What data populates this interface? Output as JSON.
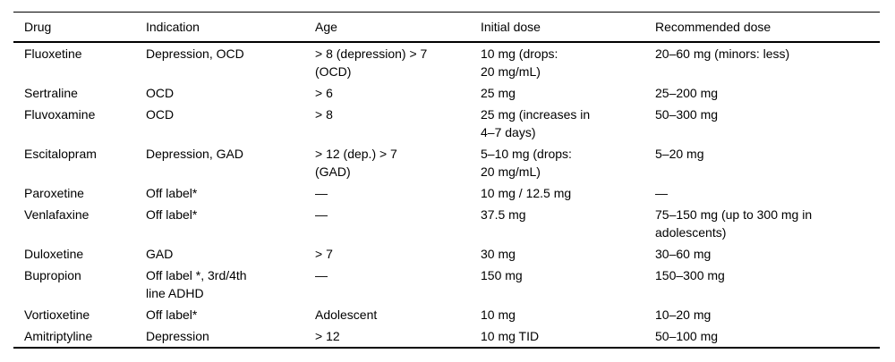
{
  "style": {
    "text_color": "#000000",
    "background_color": "#ffffff",
    "rule_color": "#000000"
  },
  "table": {
    "columns": [
      "Drug",
      "Indication",
      "Age",
      "Initial dose",
      "Recommended dose"
    ],
    "rows": [
      {
        "cells": [
          "Fluoxetine",
          "Depression, OCD",
          "> 8 (depression) > 7\n(OCD)",
          "10 mg (drops:\n20 mg/mL)",
          "20–60 mg (minors: less)"
        ]
      },
      {
        "cells": [
          "Sertraline",
          "OCD",
          "> 6",
          "25 mg",
          "25–200 mg"
        ]
      },
      {
        "cells": [
          "Fluvoxamine",
          "OCD",
          "> 8",
          "25 mg (increases in\n4–7 days)",
          "50–300 mg"
        ]
      },
      {
        "cells": [
          "Escitalopram",
          "Depression, GAD",
          "> 12 (dep.) > 7\n(GAD)",
          "5–10 mg (drops:\n20 mg/mL)",
          "5–20 mg"
        ]
      },
      {
        "cells": [
          "Paroxetine",
          "Off label*",
          "—",
          "10 mg / 12.5 mg",
          "—"
        ]
      },
      {
        "cells": [
          "Venlafaxine",
          "Off label*",
          "—",
          "37.5 mg",
          "75–150 mg (up to 300 mg in\nadolescents)"
        ]
      },
      {
        "cells": [
          "Duloxetine",
          "GAD",
          "> 7",
          "30 mg",
          "30–60 mg"
        ]
      },
      {
        "cells": [
          "Bupropion",
          "Off label *, 3rd/4th\nline ADHD",
          "—",
          "150 mg",
          "150–300 mg"
        ]
      },
      {
        "cells": [
          "Vortioxetine",
          "Off label*",
          "Adolescent",
          "10 mg",
          "10–20 mg"
        ]
      },
      {
        "cells": [
          "Amitriptyline",
          "Depression",
          "> 12",
          "10 mg TID",
          "50–100 mg"
        ]
      }
    ]
  }
}
